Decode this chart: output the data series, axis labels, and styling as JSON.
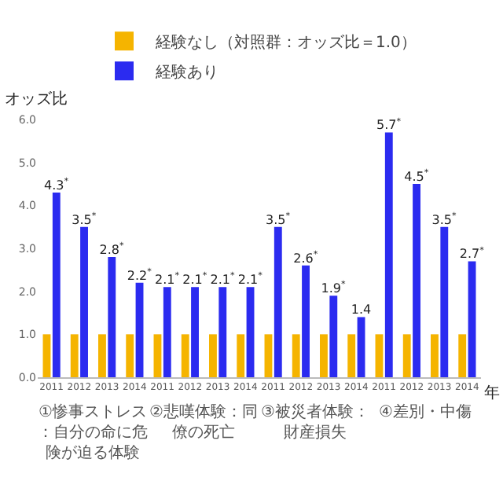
{
  "chart_data": {
    "type": "bar",
    "ylabel": "オッズ比",
    "xlabel": "年",
    "categories": [
      "2011",
      "2012",
      "2013",
      "2014",
      "2011",
      "2012",
      "2013",
      "2014",
      "2011",
      "2012",
      "2013",
      "2014",
      "2011",
      "2012",
      "2013",
      "2014"
    ],
    "series": [
      {
        "name": "経験なし（対照群：オッズ比＝1.0）",
        "color": "#f5b400",
        "values": [
          1.0,
          1.0,
          1.0,
          1.0,
          1.0,
          1.0,
          1.0,
          1.0,
          1.0,
          1.0,
          1.0,
          1.0,
          1.0,
          1.0,
          1.0,
          1.0
        ]
      },
      {
        "name": "経験あり",
        "color": "#2b2bf0",
        "values": [
          4.3,
          3.5,
          2.8,
          2.2,
          2.1,
          2.1,
          2.1,
          2.1,
          3.5,
          2.6,
          1.9,
          1.4,
          5.7,
          4.5,
          3.5,
          2.7
        ],
        "value_labels": [
          "4.3$^{*}$",
          "3.5$^{*}$",
          "2.8$^{*}$",
          "2.2$^{*}$",
          "2.1$^{*}$",
          "2.1$^{*}$",
          "2.1$^{*}$",
          "2.1$^{*}$",
          "3.5$^{*}$",
          "2.6$^{*}$",
          "1.9$^{*}$",
          "1.4",
          "5.7$^{*}$",
          "4.5$^{*}$",
          "3.5$^{*}$",
          "2.7$^{*}$"
        ]
      }
    ],
    "annotations": [
      "①惨事ストレス：自分の命に危険が迫る体験",
      "②悲嘆体験：同僚の死亡",
      "③被災者体験：財産損失",
      "④差別・中傷"
    ],
    "ylim": [
      0,
      6
    ],
    "yticks": [
      {
        "value": 0,
        "label": "0.0"
      },
      {
        "value": 1,
        "label": "1.0"
      },
      {
        "value": 2,
        "label": "2.0"
      },
      {
        "value": 3,
        "label": "3.0"
      },
      {
        "value": 4,
        "label": "4.0"
      },
      {
        "value": 5,
        "label": "5.0"
      },
      {
        "value": 6,
        "label": "6.0"
      }
    ],
    "grid": false,
    "legend": "top"
  }
}
